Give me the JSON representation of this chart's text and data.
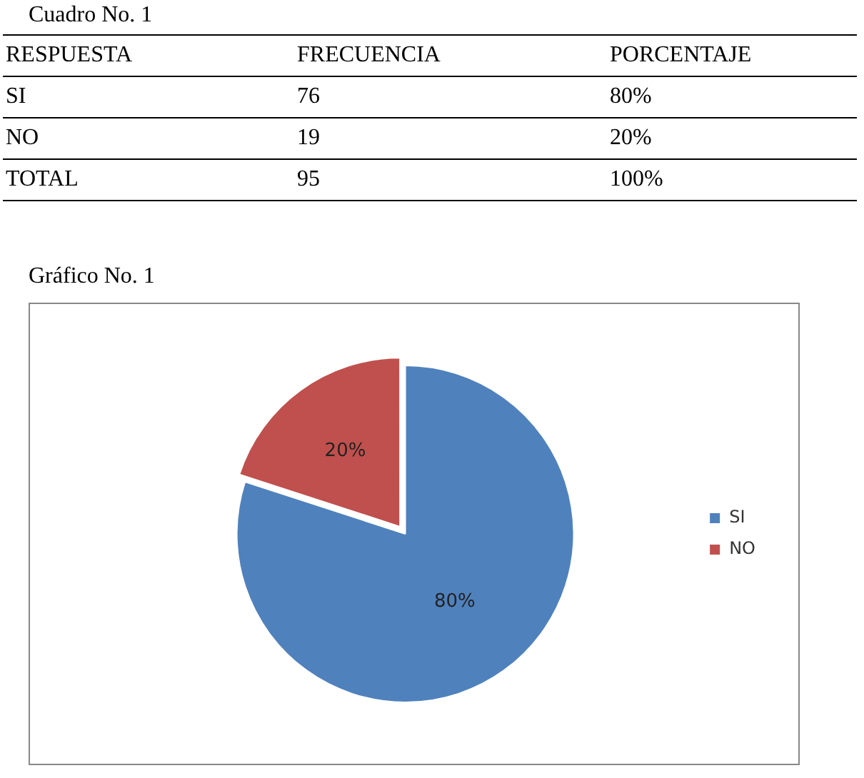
{
  "chart_data": {
    "type": "pie",
    "title": "Cuadro No. 1",
    "subtitle": "Gráfico No. 1",
    "annotations": [
      "RESPUESTA",
      "FRECUENCIA",
      "PORCENTAJE",
      "SI",
      "76",
      "80%",
      "NO",
      "19",
      "20%",
      "TOTAL",
      "95",
      "100%"
    ],
    "categories": [
      "SI",
      "NO"
    ],
    "values": [
      80,
      20
    ],
    "colors": [
      "#4f81bd",
      "#c0504d"
    ],
    "value_labels": [
      "80%",
      "20%"
    ],
    "legend": "right"
  }
}
